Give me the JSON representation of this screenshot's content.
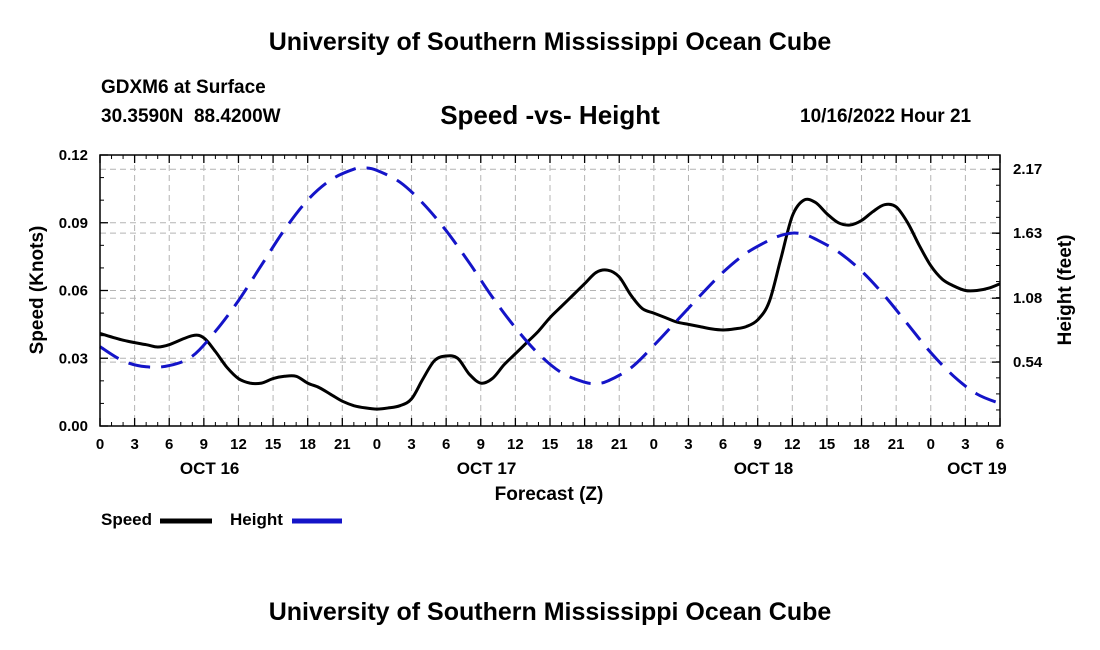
{
  "header": {
    "title_top": "University of Southern Mississippi Ocean Cube",
    "title_bottom": "University of Southern Mississippi Ocean Cube",
    "station": "GDXM6 at Surface",
    "coords": "30.3590N  88.4200W",
    "subtitle": "Speed -vs- Height",
    "timestamp": "10/16/2022 Hour 21"
  },
  "legend": {
    "speed_label": "Speed",
    "height_label": "Height"
  },
  "chart_data": {
    "type": "line",
    "xlabel": "Forecast (Z)",
    "ylabel_left": "Speed (Knots)",
    "ylabel_right": "Height (feet)",
    "x_range_hours": [
      0,
      78
    ],
    "x_tick_labels": [
      "0",
      "3",
      "6",
      "9",
      "12",
      "15",
      "18",
      "21",
      "0",
      "3",
      "6",
      "9",
      "12",
      "15",
      "18",
      "21",
      "0",
      "3",
      "6",
      "9",
      "12",
      "15",
      "18",
      "21",
      "0",
      "3",
      "6"
    ],
    "date_labels": [
      {
        "label": "OCT 16",
        "hour": 9.5
      },
      {
        "label": "OCT 17",
        "hour": 33.5
      },
      {
        "label": "OCT 18",
        "hour": 57.5
      },
      {
        "label": "OCT 19",
        "hour": 76
      }
    ],
    "y_left": {
      "ticks": [
        "0.00",
        "0.03",
        "0.06",
        "0.09",
        "0.12"
      ],
      "range": [
        0,
        0.12
      ]
    },
    "y_right": {
      "ticks": [
        "0.54",
        "1.08",
        "1.63",
        "2.17"
      ],
      "range": [
        0,
        2.29
      ]
    },
    "series": [
      {
        "name": "Speed",
        "axis": "left",
        "color": "#000000",
        "style": "solid",
        "points": [
          [
            0,
            0.041
          ],
          [
            2,
            0.038
          ],
          [
            4,
            0.036
          ],
          [
            5,
            0.035
          ],
          [
            6,
            0.036
          ],
          [
            8,
            0.04
          ],
          [
            9,
            0.039
          ],
          [
            10,
            0.033
          ],
          [
            11,
            0.026
          ],
          [
            12,
            0.021
          ],
          [
            13,
            0.019
          ],
          [
            14,
            0.019
          ],
          [
            15,
            0.021
          ],
          [
            16,
            0.022
          ],
          [
            17,
            0.022
          ],
          [
            18,
            0.019
          ],
          [
            19,
            0.017
          ],
          [
            20,
            0.014
          ],
          [
            21,
            0.011
          ],
          [
            22,
            0.009
          ],
          [
            23,
            0.008
          ],
          [
            24,
            0.0075
          ],
          [
            25,
            0.008
          ],
          [
            26,
            0.009
          ],
          [
            27,
            0.012
          ],
          [
            28,
            0.021
          ],
          [
            29,
            0.029
          ],
          [
            30,
            0.031
          ],
          [
            31,
            0.03
          ],
          [
            32,
            0.023
          ],
          [
            33,
            0.019
          ],
          [
            34,
            0.021
          ],
          [
            35,
            0.027
          ],
          [
            36,
            0.032
          ],
          [
            37,
            0.037
          ],
          [
            38,
            0.042
          ],
          [
            39,
            0.048
          ],
          [
            40,
            0.053
          ],
          [
            41,
            0.058
          ],
          [
            42,
            0.063
          ],
          [
            43,
            0.068
          ],
          [
            44,
            0.069
          ],
          [
            45,
            0.066
          ],
          [
            46,
            0.058
          ],
          [
            47,
            0.052
          ],
          [
            48,
            0.05
          ],
          [
            49,
            0.048
          ],
          [
            50,
            0.046
          ],
          [
            51,
            0.045
          ],
          [
            52,
            0.044
          ],
          [
            53,
            0.043
          ],
          [
            54,
            0.0425
          ],
          [
            55,
            0.043
          ],
          [
            56,
            0.044
          ],
          [
            57,
            0.047
          ],
          [
            58,
            0.055
          ],
          [
            59,
            0.074
          ],
          [
            60,
            0.093
          ],
          [
            61,
            0.1
          ],
          [
            62,
            0.099
          ],
          [
            63,
            0.094
          ],
          [
            64,
            0.09
          ],
          [
            65,
            0.089
          ],
          [
            66,
            0.091
          ],
          [
            67,
            0.095
          ],
          [
            68,
            0.098
          ],
          [
            69,
            0.097
          ],
          [
            70,
            0.09
          ],
          [
            71,
            0.08
          ],
          [
            72,
            0.071
          ],
          [
            73,
            0.065
          ],
          [
            74,
            0.062
          ],
          [
            75,
            0.06
          ],
          [
            76,
            0.06
          ],
          [
            77,
            0.061
          ],
          [
            78,
            0.063
          ]
        ]
      },
      {
        "name": "Height",
        "axis": "right",
        "color": "#1414c8",
        "style": "dashed",
        "points": [
          [
            0,
            0.67
          ],
          [
            2,
            0.55
          ],
          [
            4,
            0.5
          ],
          [
            6,
            0.51
          ],
          [
            8,
            0.59
          ],
          [
            10,
            0.8
          ],
          [
            12,
            1.06
          ],
          [
            14,
            1.36
          ],
          [
            16,
            1.66
          ],
          [
            18,
            1.91
          ],
          [
            20,
            2.08
          ],
          [
            22,
            2.17
          ],
          [
            23,
            2.18
          ],
          [
            24,
            2.16
          ],
          [
            26,
            2.06
          ],
          [
            28,
            1.88
          ],
          [
            30,
            1.65
          ],
          [
            32,
            1.38
          ],
          [
            34,
            1.09
          ],
          [
            36,
            0.83
          ],
          [
            38,
            0.61
          ],
          [
            40,
            0.45
          ],
          [
            42,
            0.37
          ],
          [
            43,
            0.36
          ],
          [
            44,
            0.38
          ],
          [
            46,
            0.49
          ],
          [
            48,
            0.68
          ],
          [
            50,
            0.89
          ],
          [
            52,
            1.1
          ],
          [
            54,
            1.3
          ],
          [
            56,
            1.46
          ],
          [
            58,
            1.57
          ],
          [
            59,
            1.61
          ],
          [
            60,
            1.63
          ],
          [
            61,
            1.62
          ],
          [
            62,
            1.58
          ],
          [
            64,
            1.47
          ],
          [
            66,
            1.31
          ],
          [
            68,
            1.1
          ],
          [
            70,
            0.86
          ],
          [
            72,
            0.62
          ],
          [
            74,
            0.42
          ],
          [
            76,
            0.27
          ],
          [
            78,
            0.19
          ]
        ]
      }
    ]
  }
}
